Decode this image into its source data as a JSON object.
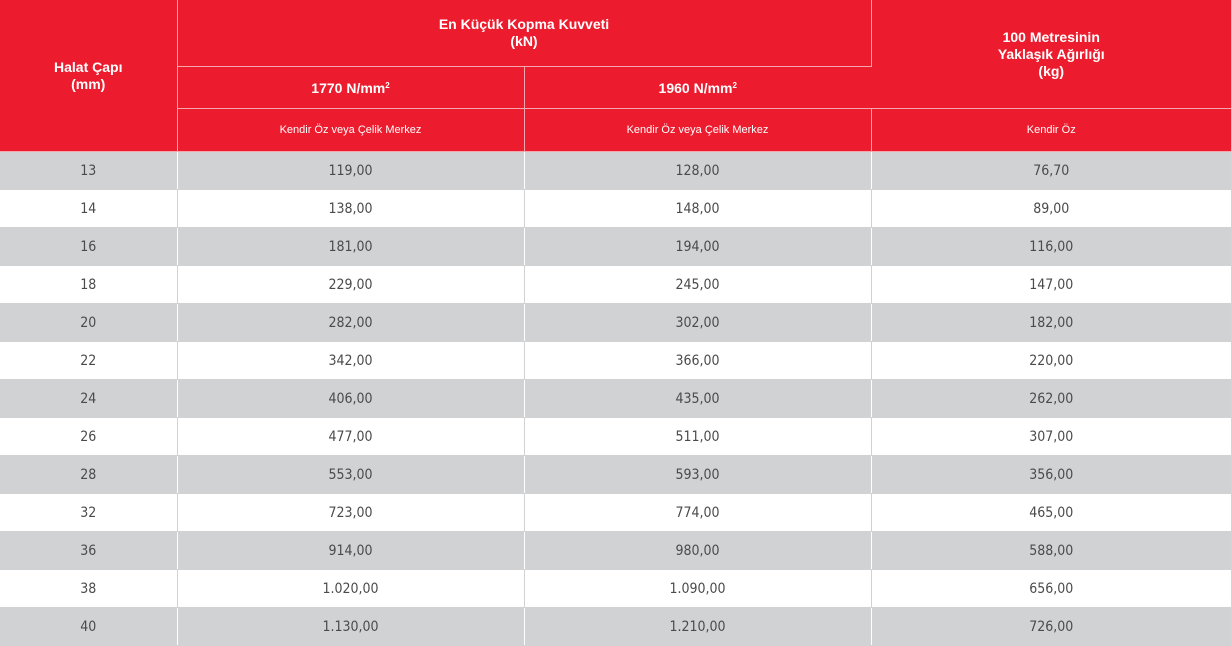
{
  "header": {
    "diameter_label": "Halat Çapı",
    "diameter_unit": "(mm)",
    "force_label": "En Küçük Kopma Kuvveti",
    "force_unit": "(kN)",
    "grade1_value": "1770 N/mm",
    "grade1_sup": "2",
    "grade2_value": "1960 N/mm",
    "grade2_sup": "2",
    "weight_label_line1": "100 Metresinin",
    "weight_label_line2": "Yaklaşık Ağırlığı",
    "weight_unit": "(kg)",
    "core1": "Kendir Öz veya Çelik Merkez",
    "core2": "Kendir Öz veya Çelik Merkez",
    "core3": "Kendir Öz"
  },
  "rows": [
    {
      "diameter": "13",
      "force_1770": "119,00",
      "force_1960": "128,00",
      "weight": "76,70"
    },
    {
      "diameter": "14",
      "force_1770": "138,00",
      "force_1960": "148,00",
      "weight": "89,00"
    },
    {
      "diameter": "16",
      "force_1770": "181,00",
      "force_1960": "194,00",
      "weight": "116,00"
    },
    {
      "diameter": "18",
      "force_1770": "229,00",
      "force_1960": "245,00",
      "weight": "147,00"
    },
    {
      "diameter": "20",
      "force_1770": "282,00",
      "force_1960": "302,00",
      "weight": "182,00"
    },
    {
      "diameter": "22",
      "force_1770": "342,00",
      "force_1960": "366,00",
      "weight": "220,00"
    },
    {
      "diameter": "24",
      "force_1770": "406,00",
      "force_1960": "435,00",
      "weight": "262,00"
    },
    {
      "diameter": "26",
      "force_1770": "477,00",
      "force_1960": "511,00",
      "weight": "307,00"
    },
    {
      "diameter": "28",
      "force_1770": "553,00",
      "force_1960": "593,00",
      "weight": "356,00"
    },
    {
      "diameter": "32",
      "force_1770": "723,00",
      "force_1960": "774,00",
      "weight": "465,00"
    },
    {
      "diameter": "36",
      "force_1770": "914,00",
      "force_1960": "980,00",
      "weight": "588,00"
    },
    {
      "diameter": "38",
      "force_1770": "1.020,00",
      "force_1960": "1.090,00",
      "weight": "656,00"
    },
    {
      "diameter": "40",
      "force_1770": "1.130,00",
      "force_1960": "1.210,00",
      "weight": "726,00"
    }
  ],
  "colors": {
    "header_bg": "#ec1c2e",
    "row_alt_bg": "#d1d2d4",
    "row_bg": "#ffffff",
    "text": "#4a4a4a"
  }
}
